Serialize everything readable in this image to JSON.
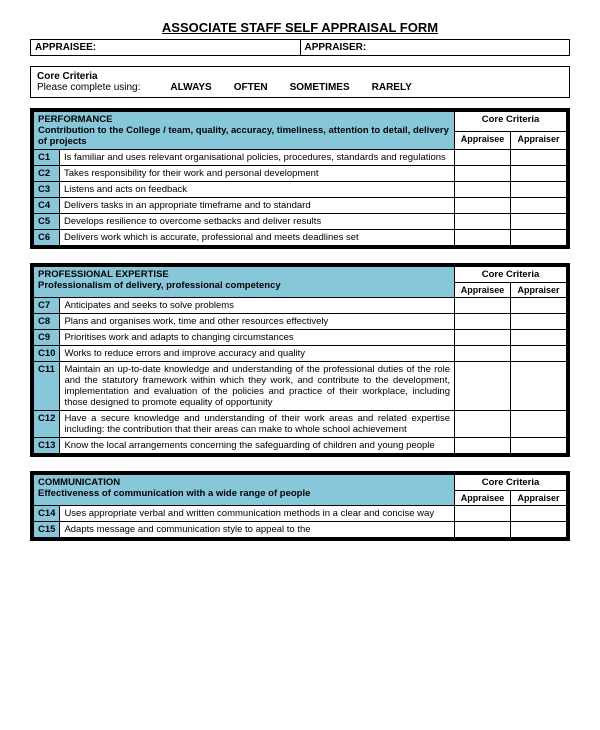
{
  "title": "ASSOCIATE STAFF SELF APPRAISAL FORM",
  "header": {
    "appraisee_label": "APPRAISEE:",
    "appraiser_label": "APPRAISER:"
  },
  "criteria_box": {
    "title": "Core Criteria",
    "prompt": "Please complete using:",
    "options": [
      "ALWAYS",
      "OFTEN",
      "SOMETIMES",
      "RARELY"
    ]
  },
  "core_criteria_label": "Core Criteria",
  "appraisee_col": "Appraisee",
  "appraiser_col": "Appraiser",
  "colors": {
    "highlight": "#86c8d9",
    "border": "#000000",
    "bg": "#ffffff"
  },
  "sections": [
    {
      "title": "PERFORMANCE",
      "subtitle": "Contribution to the College / team, quality, accuracy, timeliness, attention to detail, delivery of projects",
      "rows": [
        {
          "code": "C1",
          "desc": "Is familiar and uses relevant organisational policies, procedures, standards and regulations"
        },
        {
          "code": "C2",
          "desc": "Takes responsibility for their work and personal development"
        },
        {
          "code": "C3",
          "desc": "Listens and acts on feedback"
        },
        {
          "code": "C4",
          "desc": "Delivers tasks in an appropriate timeframe and to standard"
        },
        {
          "code": "C5",
          "desc": "Develops resilience to overcome setbacks and deliver results"
        },
        {
          "code": "C6",
          "desc": "Delivers work which is accurate, professional and meets deadlines set"
        }
      ]
    },
    {
      "title": "PROFESSIONAL EXPERTISE",
      "subtitle": "Professionalism of delivery, professional competency",
      "rows": [
        {
          "code": "C7",
          "desc": "Anticipates and seeks to solve problems"
        },
        {
          "code": "C8",
          "desc": "Plans and organises work, time and other resources effectively"
        },
        {
          "code": "C9",
          "desc": "Prioritises work and adapts to changing circumstances"
        },
        {
          "code": "C10",
          "desc": "Works to reduce errors and improve accuracy and quality"
        },
        {
          "code": "C11",
          "desc": "Maintain an up-to-date knowledge and understanding of the professional duties of the role and the statutory framework within which they work, and contribute to the development, implementation and evaluation of the policies and practice of their workplace, including those designed to promote equality of opportunity",
          "justify": true
        },
        {
          "code": "C12",
          "desc": "Have a secure knowledge and understanding of their work areas and related expertise including: the contribution that their areas can make to whole school achievement",
          "justify": true
        },
        {
          "code": "C13",
          "desc": "Know the local arrangements concerning the safeguarding of children and young people"
        }
      ]
    },
    {
      "title": "COMMUNICATION",
      "subtitle": "Effectiveness of communication with a wide range of people",
      "rows": [
        {
          "code": "C14",
          "desc": "Uses appropriate verbal and written communication methods in a clear and concise way"
        },
        {
          "code": "C15",
          "desc": "Adapts message and communication style to appeal to the"
        }
      ]
    }
  ]
}
